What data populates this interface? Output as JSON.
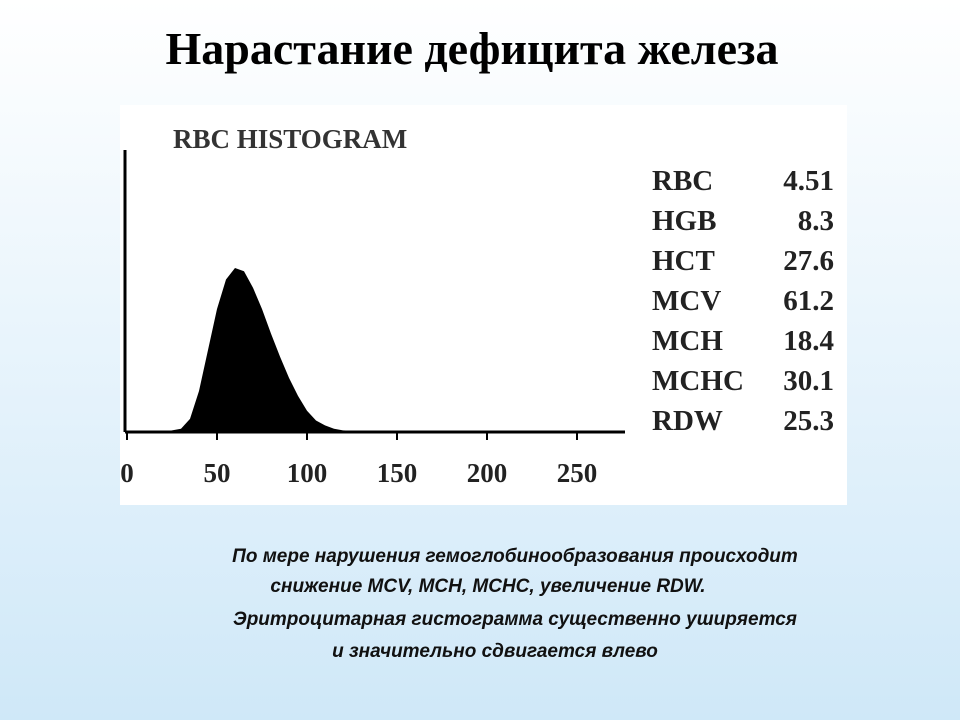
{
  "slide_title": "Нарастание дефицита железа",
  "chart_data": {
    "type": "area",
    "title": "RBC  HISTOGRAM",
    "color": "#000000",
    "x": [
      20,
      30,
      35,
      40,
      45,
      50,
      55,
      60,
      65,
      70,
      75,
      80,
      85,
      90,
      95,
      100,
      105,
      110,
      115,
      120,
      130,
      140
    ],
    "values": [
      0,
      2,
      8,
      25,
      50,
      75,
      93,
      100,
      98,
      88,
      75,
      60,
      46,
      33,
      22,
      13,
      7,
      4,
      2,
      1,
      0.5,
      0
    ],
    "xlim": [
      0,
      275
    ],
    "xticks": [
      0,
      50,
      100,
      150,
      200,
      250
    ],
    "ylim": [
      0,
      100
    ]
  },
  "stats": [
    [
      "RBC",
      "4.51"
    ],
    [
      "HGB",
      "8.3"
    ],
    [
      "HCT",
      "27.6"
    ],
    [
      "MCV",
      "61.2"
    ],
    [
      "MCH",
      "18.4"
    ],
    [
      "MCHC",
      "30.1"
    ],
    [
      "RDW",
      "25.3"
    ]
  ],
  "caption": [
    "По мере нарушения гемоглобинообразования происходит",
    "снижение MCV, MCH, MCHC, увеличение RDW.",
    "Эритроцитарная гистограмма существенно уширяется",
    "и значительно сдвигается влево"
  ]
}
